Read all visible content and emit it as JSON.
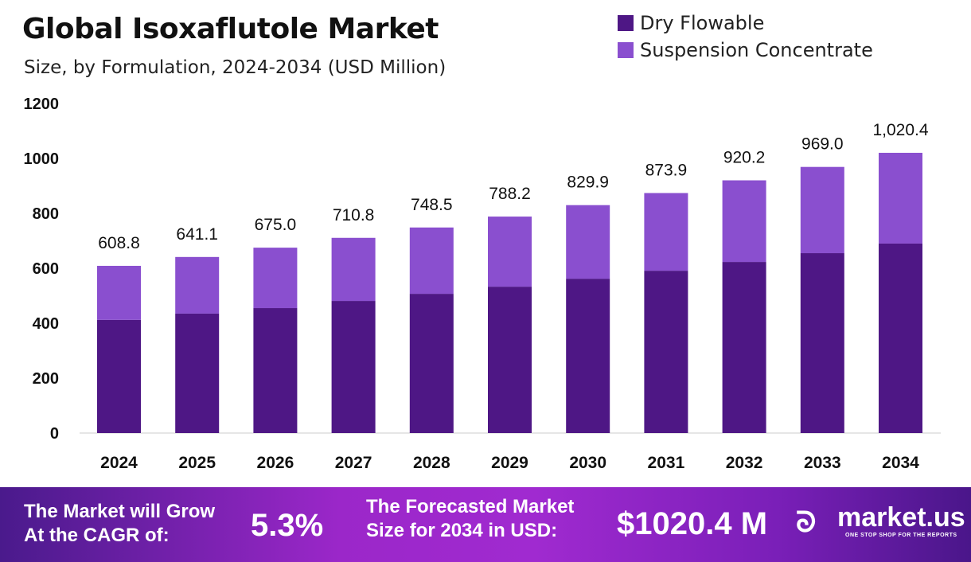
{
  "title": "Global Isoxaflutole Market",
  "subtitle": "Size, by Formulation, 2024-2034 (USD Million)",
  "chart_data": {
    "type": "bar",
    "stacked": true,
    "categories": [
      "2024",
      "2025",
      "2026",
      "2027",
      "2028",
      "2029",
      "2030",
      "2031",
      "2032",
      "2033",
      "2034"
    ],
    "series": [
      {
        "name": "Dry Flowable",
        "color": "#4e1785",
        "values": [
          412,
          435,
          455,
          481,
          507,
          533,
          562,
          591,
          623,
          655,
          690
        ]
      },
      {
        "name": "Suspension Concentrate",
        "color": "#8a4fcf",
        "values": [
          196.8,
          206.1,
          220.0,
          229.8,
          241.5,
          255.2,
          267.9,
          282.9,
          297.2,
          314.0,
          330.4
        ]
      }
    ],
    "totals": [
      608.8,
      641.1,
      675.0,
      710.8,
      748.5,
      788.2,
      829.9,
      873.9,
      920.2,
      969.0,
      1020.4
    ],
    "total_labels": [
      "608.8",
      "641.1",
      "675.0",
      "710.8",
      "748.5",
      "788.2",
      "829.9",
      "873.9",
      "920.2",
      "969.0",
      "1,020.4"
    ],
    "ylim": [
      0,
      1200
    ],
    "yticks": [
      "0",
      "200",
      "400",
      "600",
      "800",
      "1000",
      "1200"
    ],
    "grid": false,
    "legend": "top-right"
  },
  "footer": {
    "cagr_label_1": "The Market will Grow",
    "cagr_label_2": "At the CAGR of:",
    "cagr_value": "5.3%",
    "forecast_label_1": "The Forecasted Market",
    "forecast_label_2": "Size for 2034 in USD:",
    "forecast_value": "$1020.4 M",
    "brand": "market.us",
    "tagline": "ONE STOP SHOP FOR THE REPORTS"
  }
}
